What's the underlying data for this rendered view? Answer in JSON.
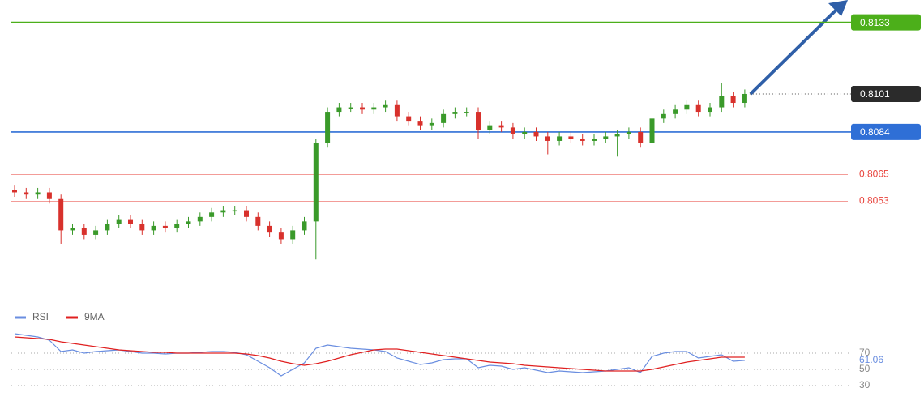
{
  "chart_data": [
    {
      "type": "candlestick",
      "up_color": "#3a9a2a",
      "down_color": "#d8312c",
      "ylim": [
        0.8009,
        0.8143
      ],
      "open": [
        0.8058,
        0.8057,
        0.8056,
        0.8057,
        0.8054,
        0.804,
        0.8041,
        0.8038,
        0.804,
        0.8043,
        0.8045,
        0.8043,
        0.804,
        0.8042,
        0.8041,
        0.8043,
        0.8044,
        0.8046,
        0.8048,
        0.8049,
        0.8049,
        0.8046,
        0.8042,
        0.8039,
        0.8036,
        0.804,
        0.8044,
        0.8079,
        0.8093,
        0.8095,
        0.8095,
        0.8094,
        0.8095,
        0.8096,
        0.8091,
        0.8089,
        0.8087,
        0.8088,
        0.8092,
        0.8093,
        0.8093,
        0.8085,
        0.8087,
        0.8086,
        0.8083,
        0.8084,
        0.8082,
        0.808,
        0.8082,
        0.8081,
        0.808,
        0.8081,
        0.8082,
        0.8083,
        0.8084,
        0.8079,
        0.809,
        0.8092,
        0.8094,
        0.8096,
        0.8093,
        0.8095,
        0.81,
        0.8097
      ],
      "high": [
        0.806,
        0.8059,
        0.8059,
        0.8059,
        0.8056,
        0.8043,
        0.8043,
        0.8042,
        0.8045,
        0.8047,
        0.8047,
        0.8045,
        0.8044,
        0.8044,
        0.8045,
        0.8046,
        0.8048,
        0.805,
        0.8051,
        0.8051,
        0.8051,
        0.8048,
        0.8044,
        0.8041,
        0.8042,
        0.8046,
        0.8081,
        0.8095,
        0.8097,
        0.8097,
        0.8097,
        0.8097,
        0.8098,
        0.8098,
        0.8093,
        0.8091,
        0.809,
        0.8094,
        0.8095,
        0.8095,
        0.8095,
        0.8089,
        0.8089,
        0.8088,
        0.8086,
        0.8086,
        0.8084,
        0.8084,
        0.8084,
        0.8083,
        0.8083,
        0.8084,
        0.8085,
        0.8086,
        0.8086,
        0.8092,
        0.8094,
        0.8096,
        0.8098,
        0.8098,
        0.8097,
        0.8106,
        0.8102,
        0.8103
      ],
      "low": [
        0.8055,
        0.8054,
        0.8054,
        0.8052,
        0.8034,
        0.8038,
        0.8036,
        0.8036,
        0.8038,
        0.8041,
        0.8041,
        0.8038,
        0.8038,
        0.8039,
        0.8039,
        0.8041,
        0.8042,
        0.8044,
        0.8046,
        0.8047,
        0.8044,
        0.804,
        0.8037,
        0.8034,
        0.8034,
        0.8038,
        0.8027,
        0.8077,
        0.8091,
        0.8093,
        0.8092,
        0.8092,
        0.8093,
        0.8089,
        0.8087,
        0.8085,
        0.8085,
        0.8086,
        0.809,
        0.8091,
        0.8081,
        0.8083,
        0.8084,
        0.8081,
        0.8081,
        0.808,
        0.8074,
        0.8078,
        0.8079,
        0.8078,
        0.8078,
        0.8079,
        0.8073,
        0.8081,
        0.8077,
        0.8077,
        0.8088,
        0.809,
        0.8092,
        0.8091,
        0.8091,
        0.8093,
        0.8095,
        0.8095
      ],
      "close": [
        0.8057,
        0.8056,
        0.8057,
        0.8054,
        0.804,
        0.8041,
        0.8038,
        0.804,
        0.8043,
        0.8045,
        0.8043,
        0.804,
        0.8042,
        0.8041,
        0.8043,
        0.8044,
        0.8046,
        0.8048,
        0.8049,
        0.8049,
        0.8046,
        0.8042,
        0.8039,
        0.8036,
        0.804,
        0.8044,
        0.8079,
        0.8093,
        0.8095,
        0.8095,
        0.8094,
        0.8095,
        0.8096,
        0.8091,
        0.8089,
        0.8087,
        0.8088,
        0.8092,
        0.8093,
        0.8093,
        0.8085,
        0.8087,
        0.8086,
        0.8083,
        0.8084,
        0.8082,
        0.808,
        0.8082,
        0.8081,
        0.808,
        0.8081,
        0.8082,
        0.8083,
        0.8084,
        0.8079,
        0.809,
        0.8092,
        0.8094,
        0.8096,
        0.8093,
        0.8095,
        0.81,
        0.8097,
        0.8101
      ],
      "levels": [
        {
          "value": 0.8133,
          "color": "#4caf1a",
          "style": "box"
        },
        {
          "value": 0.8101,
          "color": "#2b2b2b",
          "style": "current"
        },
        {
          "value": 0.8084,
          "color": "#2f6fd6",
          "style": "box"
        },
        {
          "value": 0.8065,
          "color": "#e8433c",
          "style": "text"
        },
        {
          "value": 0.8053,
          "color": "#e8433c",
          "style": "text"
        }
      ]
    },
    {
      "type": "line",
      "ylim": [
        16,
        96
      ],
      "yticks": [
        30,
        50,
        70
      ],
      "series": [
        {
          "name": "RSI",
          "color": "#6a8ee0",
          "values": [
            94,
            92,
            90,
            86,
            72,
            74,
            70,
            72,
            73,
            74,
            72,
            70,
            70,
            69,
            70,
            70,
            71,
            72,
            72,
            71,
            68,
            60,
            52,
            42,
            50,
            58,
            76,
            80,
            78,
            76,
            75,
            74,
            72,
            64,
            60,
            56,
            58,
            62,
            63,
            63,
            52,
            55,
            54,
            50,
            52,
            49,
            46,
            48,
            47,
            46,
            47,
            48,
            50,
            52,
            46,
            66,
            70,
            72,
            72,
            64,
            66,
            68,
            60,
            61.06
          ]
        },
        {
          "name": "9MA",
          "color": "#e02020",
          "values": [
            90,
            89,
            88,
            87,
            84,
            82,
            80,
            78,
            76,
            74,
            73,
            72,
            71,
            71,
            70,
            70,
            70,
            70,
            70,
            70,
            69,
            67,
            64,
            60,
            57,
            55,
            57,
            60,
            64,
            68,
            71,
            74,
            75,
            75,
            73,
            71,
            69,
            67,
            65,
            63,
            61,
            59,
            58,
            57,
            55,
            54,
            53,
            52,
            51,
            50,
            49,
            48,
            48,
            48,
            48,
            50,
            53,
            56,
            59,
            61,
            63,
            65,
            65,
            65
          ]
        }
      ]
    }
  ]
}
